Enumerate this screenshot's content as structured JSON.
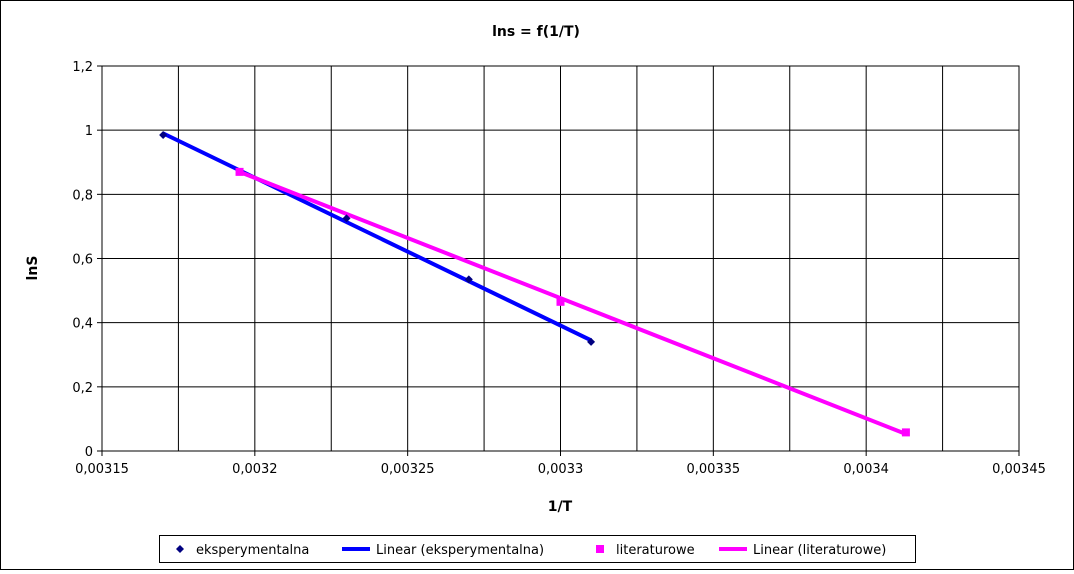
{
  "chart_data": {
    "type": "scatter",
    "title": "lns = f(1/T)",
    "xlabel": "1/T",
    "ylabel": "lnS",
    "xlim": [
      0.00315,
      0.00345
    ],
    "ylim": [
      0,
      1.2
    ],
    "x_ticks": [
      0.00315,
      0.0032,
      0.00325,
      0.0033,
      0.00335,
      0.0034,
      0.00345
    ],
    "x_tick_labels": [
      "0,00315",
      "0,0032",
      "0,00325",
      "0,0033",
      "0,00335",
      "0,0034",
      "0,00345"
    ],
    "y_ticks": [
      0,
      0.2,
      0.4,
      0.6,
      0.8,
      1,
      1.2
    ],
    "y_tick_labels": [
      "0",
      "0,2",
      "0,4",
      "0,6",
      "0,8",
      "1",
      "1,2"
    ],
    "grid": true,
    "legend_position": "bottom",
    "series": [
      {
        "name": "eksperymentalna",
        "kind": "points",
        "marker": "diamond",
        "color": "#000080",
        "points": [
          [
            0.00317,
            0.985
          ],
          [
            0.00323,
            0.725
          ],
          [
            0.00327,
            0.535
          ],
          [
            0.00331,
            0.34
          ]
        ]
      },
      {
        "name": "Linear (eksperymentalna)",
        "kind": "line",
        "color": "#0000ff",
        "points": [
          [
            0.00317,
            0.99
          ],
          [
            0.00331,
            0.345
          ]
        ]
      },
      {
        "name": "literaturowe",
        "kind": "points",
        "marker": "square",
        "color": "#ff00ff",
        "points": [
          [
            0.003195,
            0.87
          ],
          [
            0.0033,
            0.465
          ],
          [
            0.003413,
            0.058
          ]
        ]
      },
      {
        "name": "Linear (literaturowe)",
        "kind": "line",
        "color": "#ff00ff",
        "points": [
          [
            0.003195,
            0.87
          ],
          [
            0.003413,
            0.053
          ]
        ]
      }
    ]
  }
}
